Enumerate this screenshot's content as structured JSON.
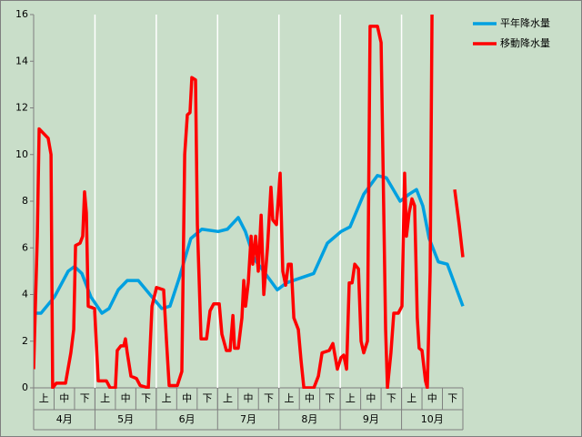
{
  "chart_data": {
    "type": "line",
    "xlim": [
      0,
      21
    ],
    "xticks": [
      {
        "value": 0.5,
        "label": "上"
      },
      {
        "value": 1.5,
        "label": "中"
      },
      {
        "value": 2.5,
        "label": "下"
      },
      {
        "value": 3.5,
        "label": "上"
      },
      {
        "value": 4.5,
        "label": "中"
      },
      {
        "value": 5.5,
        "label": "下"
      },
      {
        "value": 6.5,
        "label": "上"
      },
      {
        "value": 7.5,
        "label": "中"
      },
      {
        "value": 8.5,
        "label": "下"
      },
      {
        "value": 9.5,
        "label": "上"
      },
      {
        "value": 10.5,
        "label": "中"
      },
      {
        "value": 11.5,
        "label": "下"
      },
      {
        "value": 12.5,
        "label": "上"
      },
      {
        "value": 13.5,
        "label": "中"
      },
      {
        "value": 14.5,
        "label": "下"
      },
      {
        "value": 15.5,
        "label": "上"
      },
      {
        "value": 16.5,
        "label": "中"
      },
      {
        "value": 17.5,
        "label": "下"
      },
      {
        "value": 18.5,
        "label": "上"
      },
      {
        "value": 19.5,
        "label": "中"
      },
      {
        "value": 20.5,
        "label": "下"
      }
    ],
    "months": [
      "4月",
      "5月",
      "6月",
      "7月",
      "8月",
      "9月",
      "10月"
    ],
    "ylim": [
      0,
      16
    ],
    "yticks": [
      0,
      2,
      4,
      6,
      8,
      10,
      12,
      14,
      16
    ],
    "legend": "top-right",
    "series": [
      {
        "name": "平年降水量",
        "color": "#00a0e0",
        "x": [
          0,
          0.36,
          1.02,
          1.69,
          2.0,
          2.36,
          2.8,
          3.34,
          3.69,
          4.14,
          4.58,
          5.12,
          5.69,
          6.27,
          6.67,
          7.12,
          7.69,
          8.23,
          9.03,
          9.48,
          10.01,
          10.36,
          10.81,
          11.25,
          11.92,
          12.37,
          13.03,
          13.7,
          14.37,
          15.04,
          15.48,
          16.15,
          16.82,
          17.26,
          17.93,
          18.37,
          18.73,
          19.04,
          19.35,
          19.8,
          20.24,
          21.0
        ],
        "values": [
          3.2,
          3.2,
          3.9,
          5.0,
          5.2,
          4.9,
          3.9,
          3.2,
          3.4,
          4.2,
          4.6,
          4.6,
          4.0,
          3.4,
          3.5,
          4.7,
          6.4,
          6.8,
          6.7,
          6.8,
          7.3,
          6.7,
          5.5,
          5.0,
          4.2,
          4.5,
          4.7,
          4.9,
          6.2,
          6.7,
          6.9,
          8.3,
          9.1,
          9.0,
          8.0,
          8.3,
          8.5,
          7.8,
          6.4,
          5.4,
          5.3,
          3.5
        ]
      },
      {
        "name": "移動降水量",
        "color": "#ff0000",
        "x": [
          0,
          0.18,
          0.27,
          0.49,
          0.71,
          0.85,
          0.93,
          1.11,
          1.56,
          1.82,
          1.96,
          2.05,
          2.27,
          2.4,
          2.49,
          2.58,
          2.67,
          2.98,
          3.12,
          3.16,
          3.56,
          3.74,
          4.0,
          4.09,
          4.27,
          4.41,
          4.49,
          4.58,
          4.76,
          5.03,
          5.21,
          5.61,
          5.79,
          6.01,
          6.36,
          6.5,
          6.63,
          7.03,
          7.25,
          7.39,
          7.52,
          7.65,
          7.74,
          7.92,
          8.01,
          8.19,
          8.46,
          8.63,
          8.81,
          9.08,
          9.21,
          9.43,
          9.61,
          9.75,
          9.83,
          10.01,
          10.19,
          10.28,
          10.37,
          10.5,
          10.64,
          10.72,
          10.86,
          10.99,
          11.13,
          11.26,
          11.44,
          11.61,
          11.7,
          11.88,
          12.06,
          12.19,
          12.33,
          12.46,
          12.6,
          12.73,
          12.95,
          13.08,
          13.22,
          13.71,
          13.93,
          14.11,
          14.46,
          14.64,
          14.86,
          15.04,
          15.17,
          15.31,
          15.44,
          15.58,
          15.71,
          15.89,
          16.02,
          16.15,
          16.33,
          16.46,
          16.82,
          17.0,
          17.22,
          17.31,
          17.48,
          17.62,
          17.84,
          18.02,
          18.15,
          18.24,
          18.37,
          18.51,
          18.64,
          18.77,
          18.86,
          19.0,
          19.17,
          19.26,
          19.4,
          19.49,
          19.8,
          20.6,
          20.82,
          21.0
        ],
        "values": [
          0.8,
          6.5,
          11.1,
          10.9,
          10.7,
          10,
          0,
          0.2,
          0.2,
          1.5,
          2.5,
          6.1,
          6.2,
          6.5,
          8.4,
          7.5,
          3.5,
          3.4,
          1,
          0.3,
          0.3,
          0,
          0,
          1.6,
          1.8,
          1.8,
          2.1,
          1.5,
          0.5,
          0.4,
          0.1,
          0,
          3.5,
          4.3,
          4.2,
          2,
          0.1,
          0.1,
          0.7,
          10,
          11.7,
          11.8,
          13.3,
          13.2,
          7,
          2.1,
          2.1,
          3.3,
          3.6,
          3.6,
          2.3,
          1.6,
          1.6,
          3.1,
          1.7,
          1.7,
          3,
          4.6,
          3.5,
          4.5,
          6.5,
          5.3,
          6.5,
          5,
          7.4,
          4,
          6,
          8.6,
          7.2,
          7,
          9.2,
          5,
          4.4,
          5.3,
          5.3,
          3,
          2.5,
          1.2,
          0,
          0,
          0.5,
          1.5,
          1.6,
          1.9,
          0.8,
          1.3,
          1.4,
          0.8,
          4.5,
          4.5,
          5.3,
          5.1,
          2,
          1.5,
          2,
          15.5,
          15.5,
          14.8,
          2.5,
          0,
          1.5,
          3.2,
          3.2,
          3.5,
          9.2,
          6.5,
          7.5,
          8.1,
          7.8,
          3,
          1.7,
          1.6,
          0.3,
          0,
          5,
          16,
          null,
          8.5,
          7,
          5.6
        ]
      }
    ]
  }
}
